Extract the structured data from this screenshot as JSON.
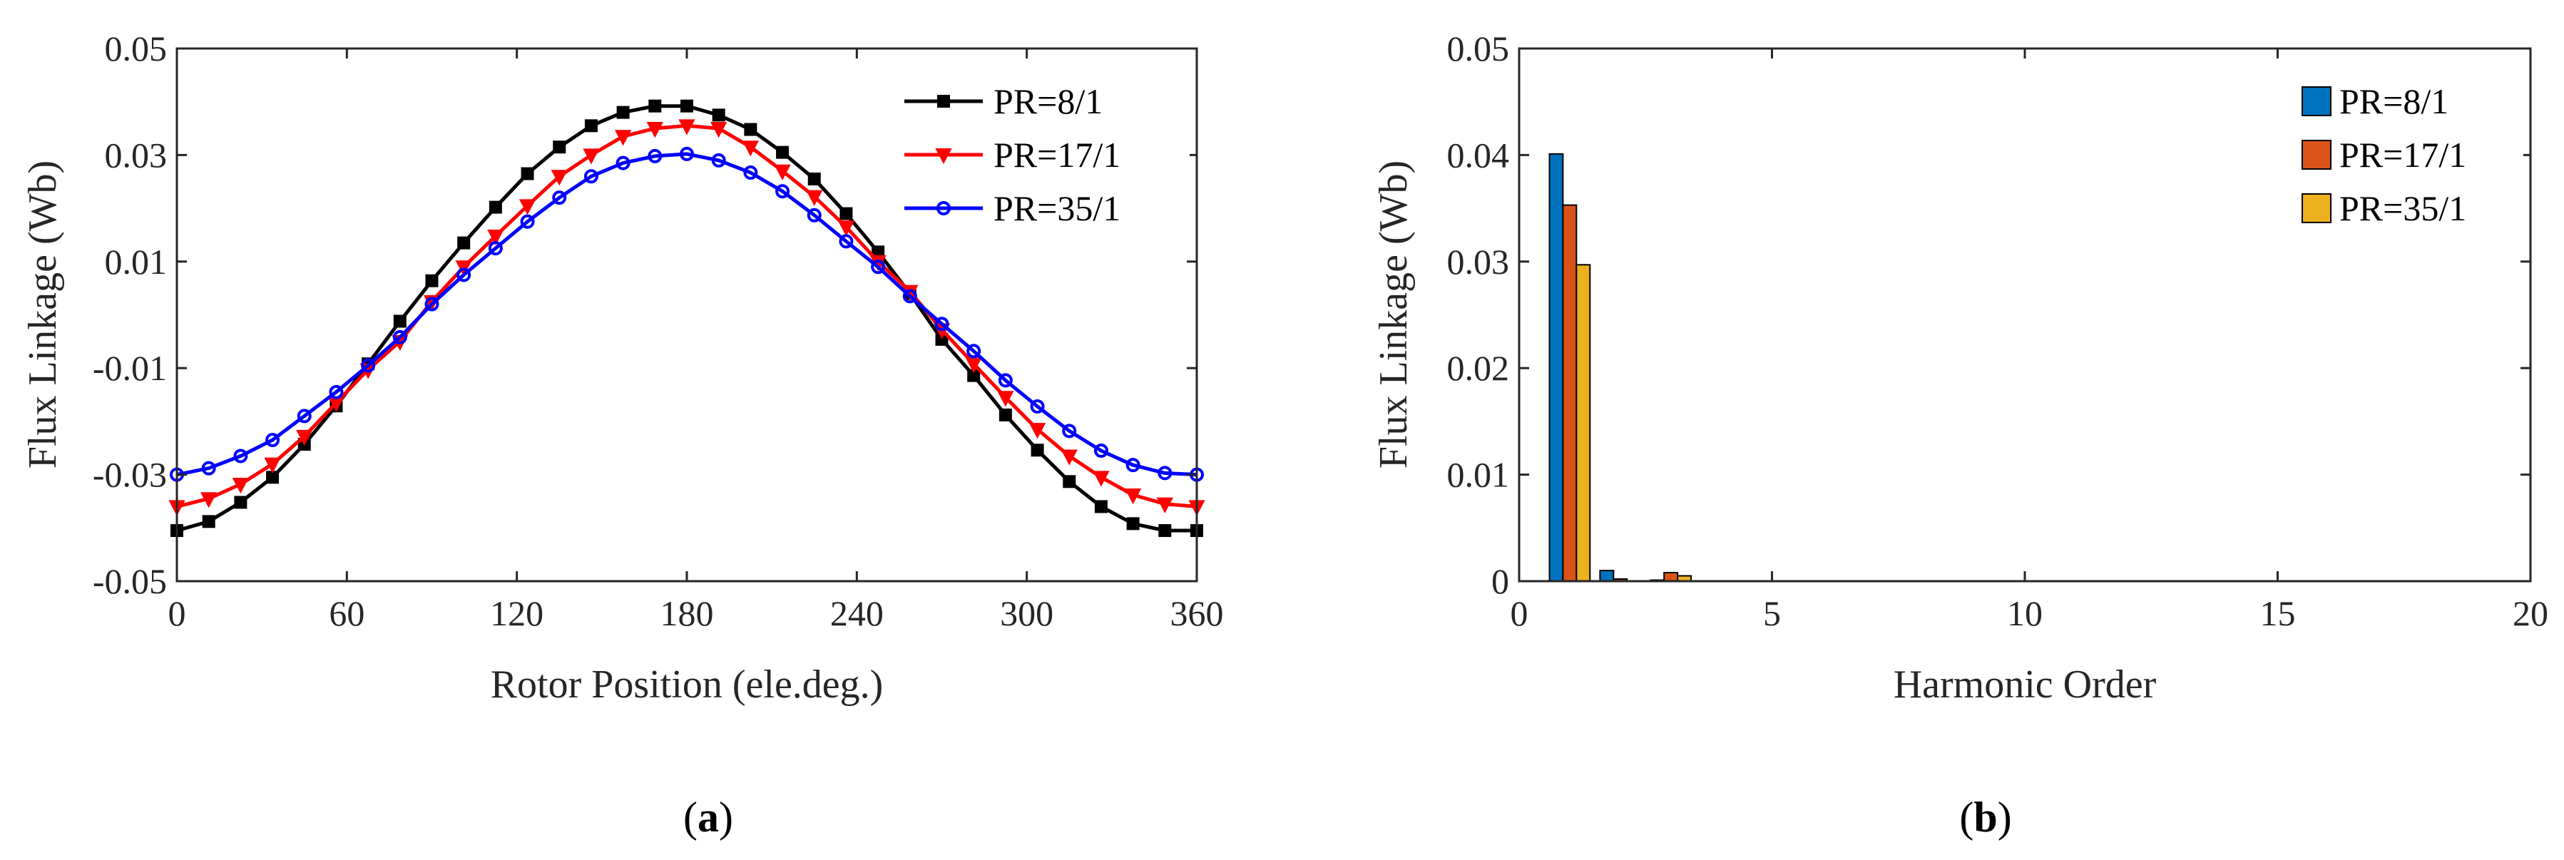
{
  "chart_data": [
    {
      "id": "a",
      "type": "line",
      "panel_label": "(a)",
      "panel_letter": "a",
      "xlabel": "Rotor Position (ele.deg.)",
      "ylabel": "Flux Linkage (Wb)",
      "xlim": [
        0,
        360
      ],
      "ylim": [
        -0.05,
        0.05
      ],
      "xticks": [
        0,
        60,
        120,
        180,
        240,
        300,
        360
      ],
      "xtick_labels": [
        "0",
        "60",
        "120",
        "180",
        "240",
        "300",
        "360"
      ],
      "yticks": [
        -0.05,
        -0.03,
        -0.01,
        0.01,
        0.03,
        0.05
      ],
      "ytick_labels": [
        "-0.05",
        "-0.03",
        "-0.01",
        "0.01",
        "0.03",
        "0.05"
      ],
      "legend_position": "top-right",
      "grid": false,
      "x": [
        0,
        11.25,
        22.5,
        33.75,
        45,
        56.25,
        67.5,
        78.75,
        90,
        101.25,
        112.5,
        123.75,
        135,
        146.25,
        157.5,
        168.75,
        180,
        191.25,
        202.5,
        213.75,
        225,
        236.25,
        247.5,
        258.75,
        270,
        281.25,
        292.5,
        303.75,
        315,
        326.25,
        337.5,
        348.75,
        360
      ],
      "series": [
        {
          "name": "PR=8/1",
          "color": "#000000",
          "marker": "square",
          "values": [
            -0.0405,
            -0.0388,
            -0.0352,
            -0.0305,
            -0.0243,
            -0.0171,
            -0.0092,
            -0.0012,
            0.0064,
            0.0135,
            0.0202,
            0.0265,
            0.0315,
            0.0355,
            0.038,
            0.0392,
            0.0392,
            0.0375,
            0.0348,
            0.0305,
            0.0255,
            0.019,
            0.0118,
            0.004,
            -0.0046,
            -0.0114,
            -0.0188,
            -0.0254,
            -0.0313,
            -0.036,
            -0.0392,
            -0.0405,
            -0.0405
          ]
        },
        {
          "name": "PR=17/1",
          "color": "#ff0000",
          "marker": "triangle-down",
          "values": [
            -0.036,
            -0.0345,
            -0.0318,
            -0.028,
            -0.0228,
            -0.0165,
            -0.0103,
            -0.005,
            0.0025,
            0.009,
            0.0148,
            0.0205,
            0.026,
            0.03,
            0.0335,
            0.035,
            0.0355,
            0.035,
            0.0315,
            0.027,
            0.0222,
            0.0165,
            0.01,
            0.0044,
            -0.0028,
            -0.0092,
            -0.0155,
            -0.0215,
            -0.0265,
            -0.0305,
            -0.0338,
            -0.0355,
            -0.036
          ]
        },
        {
          "name": "PR=35/1",
          "color": "#0000ff",
          "marker": "circle",
          "values": [
            -0.03,
            -0.0288,
            -0.0265,
            -0.0235,
            -0.019,
            -0.0145,
            -0.0095,
            -0.0042,
            0.002,
            0.0075,
            0.0125,
            0.0175,
            0.022,
            0.026,
            0.0285,
            0.0298,
            0.0302,
            0.029,
            0.0267,
            0.0232,
            0.0187,
            0.0138,
            0.009,
            0.0035,
            -0.0017,
            -0.0068,
            -0.0123,
            -0.0172,
            -0.0218,
            -0.0255,
            -0.0282,
            -0.0297,
            -0.03
          ]
        }
      ]
    },
    {
      "id": "b",
      "type": "bar",
      "panel_label": "(b)",
      "panel_letter": "b",
      "xlabel": "Harmonic Order",
      "ylabel": "Flux Linkage (Wb)",
      "xlim": [
        0,
        20
      ],
      "ylim": [
        0,
        0.05
      ],
      "xticks": [
        0,
        5,
        10,
        15,
        20
      ],
      "xtick_labels": [
        "0",
        "5",
        "10",
        "15",
        "20"
      ],
      "yticks": [
        0,
        0.01,
        0.02,
        0.03,
        0.04,
        0.05
      ],
      "ytick_labels": [
        "0",
        "0.01",
        "0.02",
        "0.03",
        "0.04",
        "0.05"
      ],
      "legend_position": "top-right",
      "grid": false,
      "categories": [
        1,
        2,
        3
      ],
      "series": [
        {
          "name": "PR=8/1",
          "color": "#0072BD",
          "values": [
            0.0401,
            0.001,
            0.0001
          ]
        },
        {
          "name": "PR=17/1",
          "color": "#D95319",
          "values": [
            0.0353,
            0.0002,
            0.0008
          ]
        },
        {
          "name": "PR=35/1",
          "color": "#EDB120",
          "values": [
            0.0297,
            0.0,
            0.0005
          ]
        }
      ]
    }
  ]
}
